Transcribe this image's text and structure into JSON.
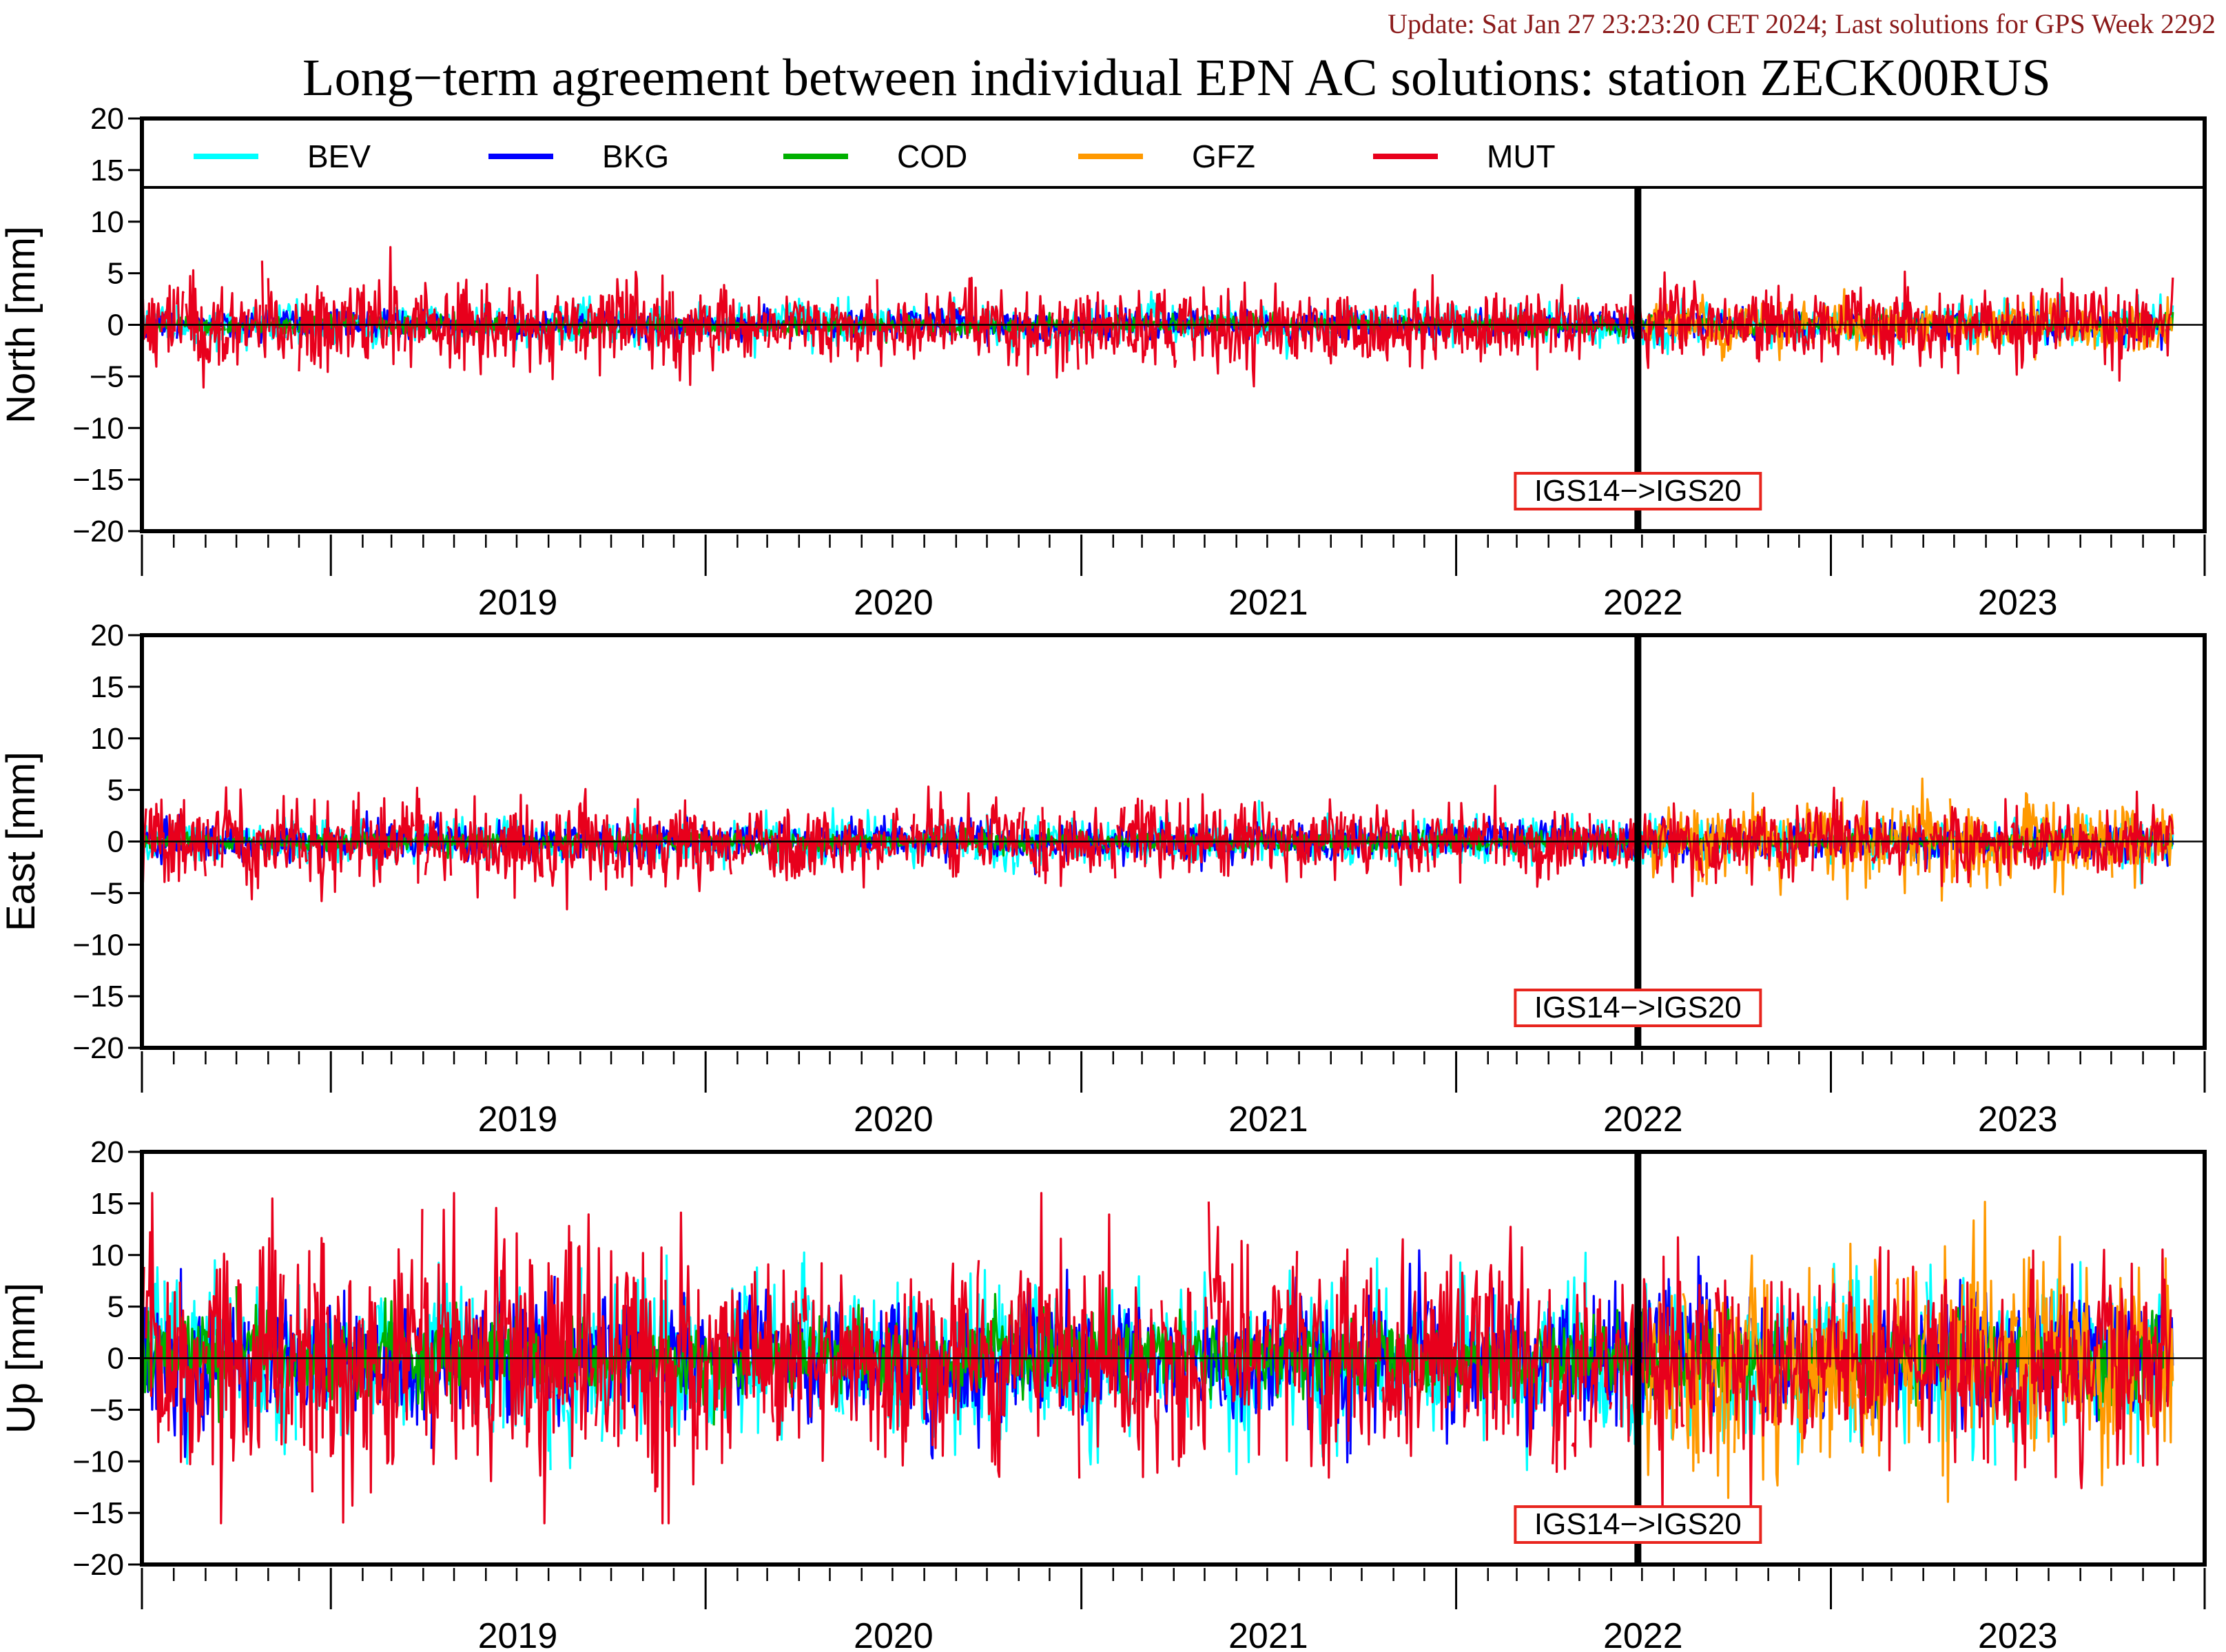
{
  "header": {
    "update_text": "Update: Sat Jan 27 23:23:20 CET 2024; Last solutions for GPS Week 2292",
    "title": "Long−term agreement between individual EPN AC solutions: station ZECK00RUS"
  },
  "colors": {
    "update": "#8b1a1a",
    "frame": "#000000",
    "marker_box": "#e8251e"
  },
  "chart_data": {
    "type": "line",
    "x_range": [
      "2018-07-01",
      "2023-12-31"
    ],
    "y_range": [
      -20,
      20
    ],
    "y_ticks": [
      "20",
      "15",
      "10",
      "5",
      "0",
      "−5",
      "−10",
      "−15",
      "−20"
    ],
    "y_tick_values": [
      20,
      15,
      10,
      5,
      0,
      -5,
      -10,
      -15,
      -20
    ],
    "year_labels": [
      "2019",
      "2020",
      "2021",
      "2022",
      "2023"
    ],
    "legend": {
      "placement": "top",
      "entries": [
        "BEV",
        "BKG",
        "COD",
        "GFZ",
        "MUT"
      ]
    },
    "series": [
      {
        "name": "BEV",
        "color": "#00ffff",
        "start": "2018-07-01",
        "end": "2023-11-30"
      },
      {
        "name": "BKG",
        "color": "#0000ff",
        "start": "2018-07-01",
        "end": "2023-11-30"
      },
      {
        "name": "COD",
        "color": "#00b000",
        "start": "2018-07-01",
        "end": "2023-11-30"
      },
      {
        "name": "GFZ",
        "color": "#ff9900",
        "start": "2022-07-05",
        "end": "2023-11-30"
      },
      {
        "name": "MUT",
        "color": "#e8001c",
        "start": "2018-07-01",
        "end": "2023-11-30"
      }
    ],
    "panels": [
      {
        "component": "North",
        "ylabel": "North [mm]",
        "show_legend": true,
        "marker": {
          "date": "2022-06-27",
          "label": "IGS14−>IGS20"
        },
        "amplitude_mm": {
          "BEV": 0.9,
          "BKG": 0.6,
          "COD": 0.4,
          "GFZ": 1.1,
          "MUT": 1.6
        }
      },
      {
        "component": "East",
        "ylabel": "East [mm]",
        "show_legend": false,
        "marker": {
          "date": "2022-06-27",
          "label": "IGS14−>IGS20"
        },
        "amplitude_mm": {
          "BEV": 1.0,
          "BKG": 0.8,
          "COD": 0.4,
          "GFZ": 1.8,
          "MUT": 1.6
        }
      },
      {
        "component": "Up",
        "ylabel": "Up [mm]",
        "show_legend": false,
        "marker": {
          "date": "2022-06-27",
          "label": "IGS14−>IGS20"
        },
        "amplitude_mm": {
          "BEV": 3.5,
          "BKG": 2.8,
          "COD": 1.8,
          "GFZ": 4.5,
          "MUT": 4.5
        }
      }
    ]
  }
}
